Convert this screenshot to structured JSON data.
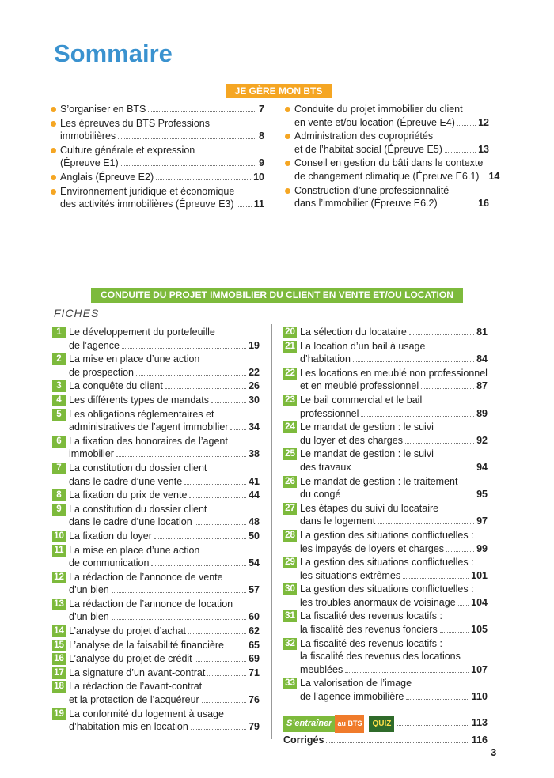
{
  "title": "Sommaire",
  "section1": {
    "label": "JE GÈRE MON BTS",
    "left": [
      {
        "lines": [
          "S’organiser en BTS"
        ],
        "page": 7
      },
      {
        "lines": [
          "Les épreuves du BTS Professions",
          "immobilières"
        ],
        "page": 8
      },
      {
        "lines": [
          "Culture générale et expression",
          "(Épreuve E1)"
        ],
        "page": 9
      },
      {
        "lines": [
          "Anglais (Épreuve E2)"
        ],
        "page": 10
      },
      {
        "lines": [
          "Environnement juridique et économique",
          "des activités immobilières (Épreuve E3)"
        ],
        "page": 11
      }
    ],
    "right": [
      {
        "lines": [
          "Conduite du projet immobilier du client",
          "en vente et/ou location (Épreuve E4)"
        ],
        "page": 12
      },
      {
        "lines": [
          "Administration des copropriétés",
          "et de l’habitat social (Épreuve E5)"
        ],
        "page": 13
      },
      {
        "lines": [
          "Conseil en gestion du bâti dans le contexte",
          "de changement climatique (Épreuve E6.1)"
        ],
        "page": 14
      },
      {
        "lines": [
          "Construction d’une professionnalité",
          "dans l’immobilier (Épreuve E6.2)"
        ],
        "page": 16
      }
    ]
  },
  "section2": {
    "label": "CONDUITE DU PROJET IMMOBILIER DU CLIENT EN VENTE ET/OU LOCATION",
    "fiches_label": "FICHES",
    "left": [
      {
        "number": 1,
        "lines": [
          "Le développement du portefeuille",
          "de l’agence"
        ],
        "page": 19
      },
      {
        "number": 2,
        "lines": [
          "La mise en place d’une action",
          "de prospection"
        ],
        "page": 22
      },
      {
        "number": 3,
        "lines": [
          "La conquête du client"
        ],
        "page": 26
      },
      {
        "number": 4,
        "lines": [
          "Les différents types de mandats"
        ],
        "page": 30
      },
      {
        "number": 5,
        "lines": [
          "Les obligations réglementaires et",
          "administratives de l’agent immobilier"
        ],
        "page": 34
      },
      {
        "number": 6,
        "lines": [
          "La fixation des honoraires de l’agent",
          "immobilier"
        ],
        "page": 38
      },
      {
        "number": 7,
        "lines": [
          "La constitution du dossier client",
          "dans le cadre d’une vente"
        ],
        "page": 41
      },
      {
        "number": 8,
        "lines": [
          "La fixation du prix de vente"
        ],
        "page": 44
      },
      {
        "number": 9,
        "lines": [
          "La constitution du dossier client",
          "dans le cadre d’une location"
        ],
        "page": 48
      },
      {
        "number": 10,
        "lines": [
          "La fixation du loyer"
        ],
        "page": 50
      },
      {
        "number": 11,
        "lines": [
          "La mise en place d’une action",
          "de communication"
        ],
        "page": 54
      },
      {
        "number": 12,
        "lines": [
          "La rédaction de l’annonce de vente",
          "d’un bien"
        ],
        "page": 57
      },
      {
        "number": 13,
        "lines": [
          "La rédaction de l’annonce de location",
          "d’un bien"
        ],
        "page": 60
      },
      {
        "number": 14,
        "lines": [
          "L’analyse du projet d’achat"
        ],
        "page": 62
      },
      {
        "number": 15,
        "lines": [
          "L’analyse de la faisabilité financière"
        ],
        "page": 65
      },
      {
        "number": 16,
        "lines": [
          "L’analyse du projet de crédit"
        ],
        "page": 69
      },
      {
        "number": 17,
        "lines": [
          "La signature d’un avant-contrat"
        ],
        "page": 71
      },
      {
        "number": 18,
        "lines": [
          "La rédaction de l’avant-contrat",
          "et la protection de l’acquéreur"
        ],
        "page": 76
      },
      {
        "number": 19,
        "lines": [
          "La conformité du logement à usage",
          "d’habitation mis en location"
        ],
        "page": 79
      }
    ],
    "right": [
      {
        "number": 20,
        "lines": [
          "La sélection du locataire"
        ],
        "page": 81
      },
      {
        "number": 21,
        "lines": [
          "La location d’un bail à usage",
          "d’habitation"
        ],
        "page": 84
      },
      {
        "number": 22,
        "lines": [
          "Les locations en meublé non professionnel",
          "et en meublé professionnel"
        ],
        "page": 87
      },
      {
        "number": 23,
        "lines": [
          "Le bail commercial et le bail",
          "professionnel"
        ],
        "page": 89
      },
      {
        "number": 24,
        "lines": [
          "Le mandat de gestion : le suivi",
          "du loyer et des charges"
        ],
        "page": 92
      },
      {
        "number": 25,
        "lines": [
          "Le mandat de gestion : le suivi",
          "des travaux"
        ],
        "page": 94
      },
      {
        "number": 26,
        "lines": [
          "Le mandat de gestion : le traitement",
          "du congé"
        ],
        "page": 95
      },
      {
        "number": 27,
        "lines": [
          "Les étapes du suivi du locataire",
          "dans le logement"
        ],
        "page": 97
      },
      {
        "number": 28,
        "lines": [
          "La gestion des situations conflictuelles :",
          "les impayés de loyers et charges"
        ],
        "page": 99
      },
      {
        "number": 29,
        "lines": [
          "La gestion des situations conflictuelles :",
          "les situations extrêmes"
        ],
        "page": 101
      },
      {
        "number": 30,
        "lines": [
          "La gestion des situations conflictuelles :",
          "les troubles anormaux de voisinage"
        ],
        "page": 104
      },
      {
        "number": 31,
        "lines": [
          "La fiscalité des revenus locatifs :",
          "la fiscalité des revenus fonciers"
        ],
        "page": 105
      },
      {
        "number": 32,
        "lines": [
          "La fiscalité des revenus locatifs :",
          "la fiscalité des revenus des locations",
          "meublées"
        ],
        "page": 107
      },
      {
        "number": 33,
        "lines": [
          "La valorisation de l’image",
          "de l’agence immobilière"
        ],
        "page": 110
      }
    ],
    "entrainer": {
      "label": "S’entraîner",
      "badge": "au BTS",
      "quiz": "QUIZ",
      "page": 113
    },
    "corriges": {
      "label": "Corrigés",
      "page": 116
    }
  },
  "page_number": 3
}
